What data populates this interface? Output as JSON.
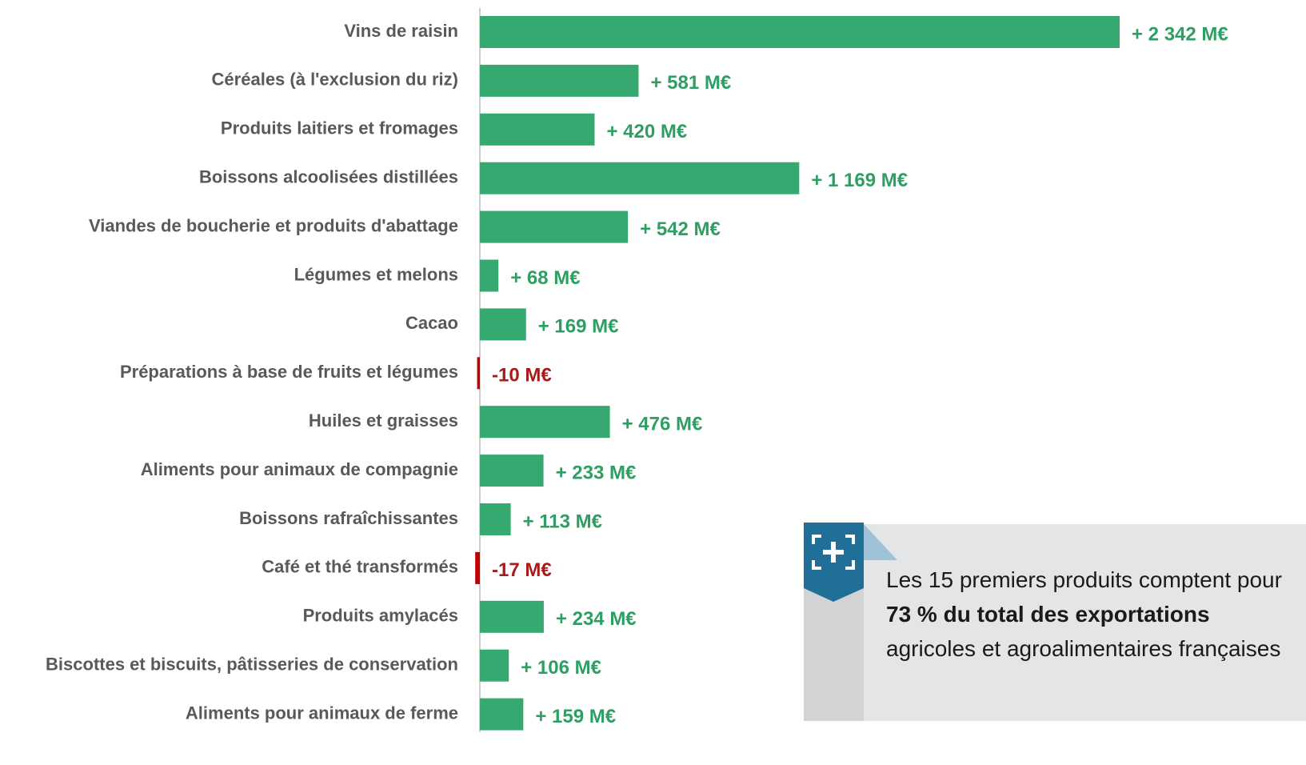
{
  "chart_data": {
    "type": "bar",
    "orientation": "horizontal",
    "categories": [
      "Vins de raisin",
      "Céréales (à  l'exclusion du riz)",
      "Produits laitiers et fromages",
      "Boissons alcoolisées distillées",
      "Viandes de boucherie et produits d'abattage",
      "Légumes et melons",
      "Cacao",
      "Préparations à  base de fruits et légumes",
      "Huiles et graisses",
      "Aliments pour animaux de compagnie",
      "Boissons rafraîchissantes ",
      "Café et thé transformés",
      "Produits amylacés",
      "Biscottes et biscuits, pâtisseries de conservation",
      "Aliments pour animaux de ferme"
    ],
    "values": [
      2342,
      581,
      420,
      1169,
      542,
      68,
      169,
      -10,
      476,
      233,
      113,
      -17,
      234,
      106,
      159
    ],
    "value_labels": [
      "+ 2 342 M€",
      "+ 581 M€",
      "+ 420 M€",
      "+ 1 169 M€",
      "+ 542 M€",
      "+ 68 M€",
      "+ 169 M€",
      "-10 M€",
      "+ 476 M€",
      "+ 233 M€",
      "+ 113 M€",
      "-17 M€",
      "+ 234 M€",
      "+ 106 M€",
      "+ 159 M€"
    ],
    "color": "#35a96f",
    "negative_color": "#c00000"
  },
  "annotation": {
    "parts": [
      "Les 15 premiers produits comptent pour ",
      "73 % du total des exportations",
      " agricoles et agroalimentaires françaises"
    ]
  }
}
